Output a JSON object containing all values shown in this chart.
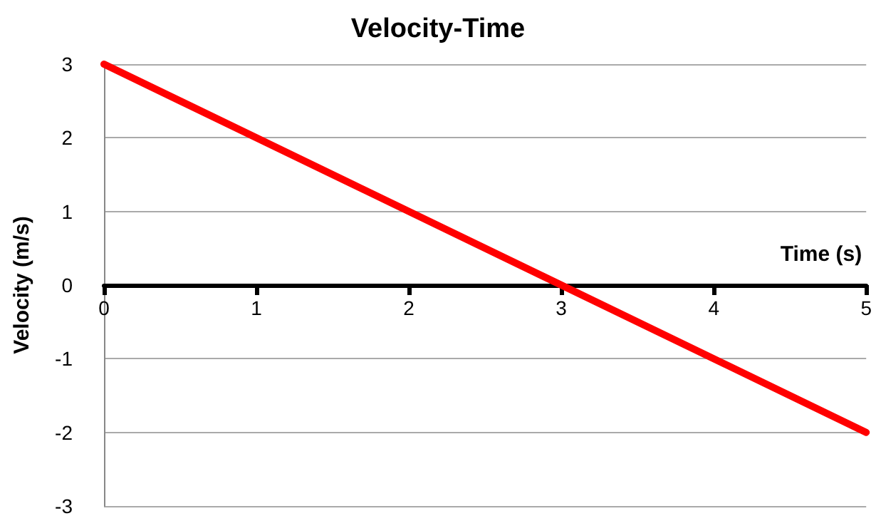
{
  "chart_data": {
    "type": "line",
    "title": "Velocity-Time",
    "xlabel": "Time (s)",
    "ylabel": "Velocity (m/s)",
    "x": [
      0,
      5
    ],
    "series": [
      {
        "color": "#ff0000",
        "values": [
          3,
          -2
        ]
      }
    ],
    "xlim": [
      0,
      5
    ],
    "xticks": [
      0,
      1,
      2,
      3,
      4,
      5
    ],
    "ylim": [
      -3,
      3
    ],
    "yticks": [
      -3,
      -2,
      -1,
      0,
      1,
      2,
      3
    ],
    "grid": "y",
    "marker": "none",
    "line_style": "solid"
  }
}
